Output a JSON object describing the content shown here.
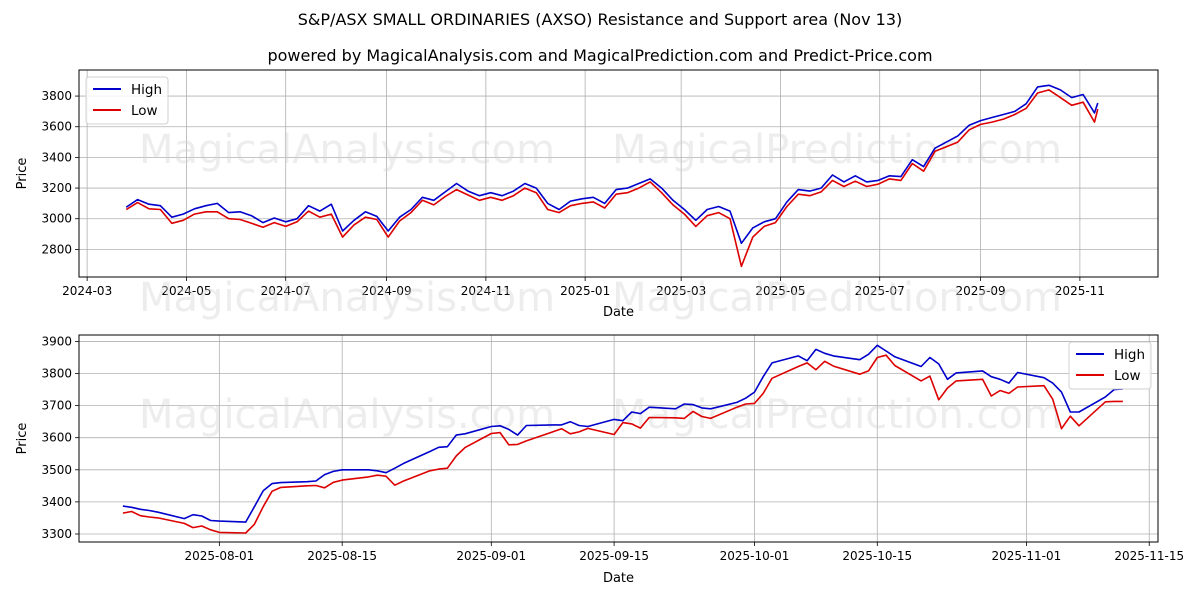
{
  "header": {
    "title": "S&P/ASX SMALL ORDINARIES (AXSO) Resistance and Support area (Nov 13)",
    "subtitle": "powered by MagicalAnalysis.com and MagicalPrediction.com and Predict-Price.com"
  },
  "watermarks": [
    "MagicalAnalysis.com",
    "MagicalPrediction.com"
  ],
  "colors": {
    "high": "#0000cc",
    "low": "#dd0000",
    "grid": "#b0b0b0",
    "axes": "#000000"
  },
  "chart_data": [
    {
      "type": "line",
      "title": "",
      "xlabel": "Date",
      "ylabel": "Price",
      "ylim": [
        2620,
        3970
      ],
      "yticks": [
        2800,
        3000,
        3200,
        3400,
        3600,
        3800
      ],
      "xticks": [
        "2024-03",
        "2024-05",
        "2024-07",
        "2024-09",
        "2024-11",
        "2025-01",
        "2025-03",
        "2025-05",
        "2025-07",
        "2025-09",
        "2025-11"
      ],
      "xlim": [
        "2024-02-25",
        "2025-12-19"
      ],
      "grid": true,
      "legend_position": "upper left",
      "legend": [
        "High",
        "Low"
      ],
      "x": [
        "2024-03-25",
        "2024-04-01",
        "2024-04-08",
        "2024-04-15",
        "2024-04-22",
        "2024-04-29",
        "2024-05-06",
        "2024-05-13",
        "2024-05-20",
        "2024-05-27",
        "2024-06-03",
        "2024-06-10",
        "2024-06-17",
        "2024-06-24",
        "2024-07-01",
        "2024-07-08",
        "2024-07-15",
        "2024-07-22",
        "2024-07-29",
        "2024-08-05",
        "2024-08-12",
        "2024-08-19",
        "2024-08-26",
        "2024-09-02",
        "2024-09-09",
        "2024-09-16",
        "2024-09-23",
        "2024-09-30",
        "2024-10-07",
        "2024-10-14",
        "2024-10-21",
        "2024-10-28",
        "2024-11-04",
        "2024-11-11",
        "2024-11-18",
        "2024-11-25",
        "2024-12-02",
        "2024-12-09",
        "2024-12-16",
        "2024-12-23",
        "2024-12-30",
        "2025-01-06",
        "2025-01-13",
        "2025-01-20",
        "2025-01-27",
        "2025-02-03",
        "2025-02-10",
        "2025-02-17",
        "2025-02-24",
        "2025-03-03",
        "2025-03-10",
        "2025-03-17",
        "2025-03-24",
        "2025-03-31",
        "2025-04-07",
        "2025-04-14",
        "2025-04-21",
        "2025-04-28",
        "2025-05-05",
        "2025-05-12",
        "2025-05-19",
        "2025-05-26",
        "2025-06-02",
        "2025-06-09",
        "2025-06-16",
        "2025-06-23",
        "2025-06-30",
        "2025-07-07",
        "2025-07-14",
        "2025-07-21",
        "2025-07-28",
        "2025-08-04",
        "2025-08-11",
        "2025-08-18",
        "2025-08-25",
        "2025-09-01",
        "2025-09-08",
        "2025-09-15",
        "2025-09-22",
        "2025-09-29",
        "2025-10-06",
        "2025-10-13",
        "2025-10-20",
        "2025-10-27",
        "2025-11-03",
        "2025-11-10",
        "2025-11-12"
      ],
      "series": [
        {
          "name": "High",
          "values": [
            3075,
            3125,
            3095,
            3085,
            3010,
            3030,
            3065,
            3085,
            3100,
            3040,
            3045,
            3020,
            2975,
            3005,
            2980,
            3000,
            3085,
            3050,
            3095,
            2920,
            2990,
            3045,
            3015,
            2920,
            3010,
            3060,
            3140,
            3120,
            3175,
            3230,
            3180,
            3150,
            3170,
            3150,
            3180,
            3230,
            3200,
            3100,
            3060,
            3115,
            3130,
            3140,
            3100,
            3190,
            3200,
            3230,
            3260,
            3200,
            3120,
            3060,
            2990,
            3060,
            3080,
            3050,
            2840,
            2940,
            2980,
            3000,
            3110,
            3190,
            3180,
            3200,
            3285,
            3240,
            3280,
            3240,
            3250,
            3280,
            3275,
            3385,
            3340,
            3460,
            3500,
            3540,
            3610,
            3640,
            3660,
            3680,
            3700,
            3750,
            3860,
            3870,
            3840,
            3790,
            3810,
            3690,
            3755
          ]
        },
        {
          "name": "Low",
          "values": [
            3060,
            3105,
            3065,
            3060,
            2970,
            2990,
            3030,
            3045,
            3045,
            3000,
            2995,
            2970,
            2945,
            2975,
            2950,
            2980,
            3050,
            3010,
            3030,
            2880,
            2960,
            3010,
            2995,
            2880,
            2985,
            3040,
            3120,
            3090,
            3145,
            3190,
            3155,
            3120,
            3140,
            3120,
            3150,
            3200,
            3170,
            3060,
            3040,
            3085,
            3100,
            3110,
            3070,
            3160,
            3170,
            3200,
            3240,
            3170,
            3090,
            3030,
            2950,
            3020,
            3040,
            3000,
            2690,
            2880,
            2950,
            2975,
            3080,
            3160,
            3150,
            3175,
            3250,
            3210,
            3245,
            3210,
            3225,
            3260,
            3250,
            3360,
            3310,
            3440,
            3470,
            3500,
            3580,
            3615,
            3630,
            3650,
            3680,
            3720,
            3820,
            3840,
            3790,
            3740,
            3760,
            3630,
            3715
          ]
        }
      ]
    },
    {
      "type": "line",
      "title": "",
      "xlabel": "Date",
      "ylabel": "Price",
      "ylim": [
        3275,
        3920
      ],
      "yticks": [
        3300,
        3400,
        3500,
        3600,
        3700,
        3800,
        3900
      ],
      "xticks": [
        "2025-08-01",
        "2025-08-15",
        "2025-09-01",
        "2025-09-15",
        "2025-10-01",
        "2025-10-15",
        "2025-11-01",
        "2025-11-15"
      ],
      "xlim": [
        "2025-07-16",
        "2025-11-16"
      ],
      "grid": true,
      "legend_position": "upper right",
      "legend": [
        "High",
        "Low"
      ],
      "x": [
        "2025-07-21",
        "2025-07-22",
        "2025-07-23",
        "2025-07-24",
        "2025-07-25",
        "2025-07-28",
        "2025-07-29",
        "2025-07-30",
        "2025-07-31",
        "2025-08-01",
        "2025-08-04",
        "2025-08-05",
        "2025-08-06",
        "2025-08-07",
        "2025-08-08",
        "2025-08-11",
        "2025-08-12",
        "2025-08-13",
        "2025-08-14",
        "2025-08-15",
        "2025-08-18",
        "2025-08-19",
        "2025-08-20",
        "2025-08-21",
        "2025-08-22",
        "2025-08-25",
        "2025-08-26",
        "2025-08-27",
        "2025-08-28",
        "2025-08-29",
        "2025-09-01",
        "2025-09-02",
        "2025-09-03",
        "2025-09-04",
        "2025-09-05",
        "2025-09-08",
        "2025-09-09",
        "2025-09-10",
        "2025-09-11",
        "2025-09-12",
        "2025-09-15",
        "2025-09-16",
        "2025-09-17",
        "2025-09-18",
        "2025-09-19",
        "2025-09-22",
        "2025-09-23",
        "2025-09-24",
        "2025-09-25",
        "2025-09-26",
        "2025-09-29",
        "2025-09-30",
        "2025-10-01",
        "2025-10-02",
        "2025-10-03",
        "2025-10-06",
        "2025-10-07",
        "2025-10-08",
        "2025-10-09",
        "2025-10-10",
        "2025-10-13",
        "2025-10-14",
        "2025-10-15",
        "2025-10-16",
        "2025-10-17",
        "2025-10-20",
        "2025-10-21",
        "2025-10-22",
        "2025-10-23",
        "2025-10-24",
        "2025-10-27",
        "2025-10-28",
        "2025-10-29",
        "2025-10-30",
        "2025-10-31",
        "2025-11-03",
        "2025-11-04",
        "2025-11-05",
        "2025-11-06",
        "2025-11-07",
        "2025-11-10",
        "2025-11-11",
        "2025-11-12"
      ],
      "series": [
        {
          "name": "High",
          "values": [
            3387,
            3383,
            3377,
            3373,
            3368,
            3348,
            3360,
            3356,
            3342,
            3340,
            3337,
            3385,
            3435,
            3457,
            3460,
            3463,
            3465,
            3485,
            3495,
            3500,
            3500,
            3497,
            3491,
            3505,
            3520,
            3557,
            3570,
            3572,
            3608,
            3612,
            3635,
            3637,
            3626,
            3608,
            3638,
            3640,
            3640,
            3650,
            3638,
            3635,
            3657,
            3653,
            3680,
            3675,
            3695,
            3690,
            3705,
            3703,
            3693,
            3690,
            3710,
            3723,
            3742,
            3790,
            3833,
            3855,
            3840,
            3875,
            3863,
            3855,
            3843,
            3860,
            3888,
            3870,
            3852,
            3822,
            3850,
            3830,
            3782,
            3802,
            3808,
            3790,
            3782,
            3770,
            3803,
            3787,
            3770,
            3742,
            3680,
            3680,
            3727,
            3750,
            3752
          ]
        },
        {
          "name": "Low",
          "values": [
            3365,
            3370,
            3357,
            3353,
            3350,
            3333,
            3320,
            3325,
            3313,
            3305,
            3303,
            3330,
            3385,
            3433,
            3445,
            3450,
            3451,
            3444,
            3461,
            3468,
            3478,
            3483,
            3480,
            3452,
            3465,
            3497,
            3502,
            3505,
            3543,
            3569,
            3613,
            3616,
            3578,
            3579,
            3590,
            3618,
            3628,
            3612,
            3618,
            3629,
            3610,
            3647,
            3643,
            3630,
            3663,
            3662,
            3660,
            3682,
            3666,
            3660,
            3695,
            3705,
            3707,
            3738,
            3785,
            3822,
            3833,
            3812,
            3838,
            3823,
            3798,
            3808,
            3850,
            3857,
            3825,
            3777,
            3792,
            3718,
            3755,
            3777,
            3782,
            3730,
            3747,
            3738,
            3758,
            3762,
            3720,
            3628,
            3667,
            3637,
            3712,
            3713,
            3713
          ]
        }
      ]
    }
  ]
}
